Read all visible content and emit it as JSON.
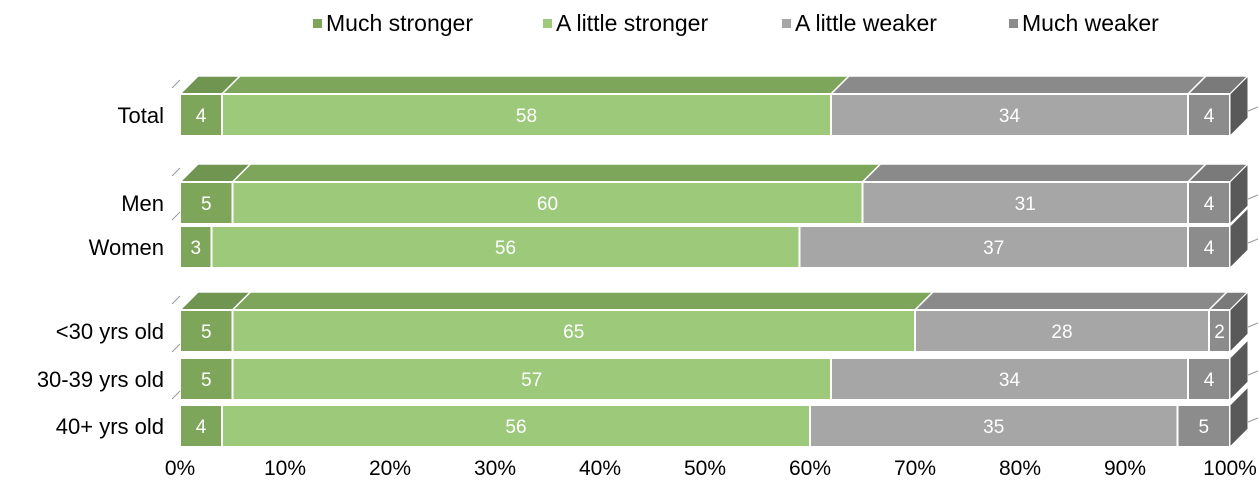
{
  "chart_data": {
    "type": "bar",
    "orientation": "horizontal",
    "stacked": true,
    "percent_stacked": true,
    "legend_position": "top",
    "xlim": [
      0,
      100
    ],
    "x_ticks": [
      "0%",
      "10%",
      "20%",
      "30%",
      "40%",
      "50%",
      "60%",
      "70%",
      "80%",
      "90%",
      "100%"
    ],
    "categories": [
      "Total",
      "Men",
      "Women",
      "<30 yrs old",
      "30-39 yrs old",
      "40+ yrs old"
    ],
    "groups": [
      [
        "Total"
      ],
      [
        "Men",
        "Women"
      ],
      [
        "<30 yrs old",
        "30-39 yrs old",
        "40+ yrs old"
      ]
    ],
    "series": [
      {
        "name": "Much stronger",
        "color": "#7ea65a",
        "values": [
          4,
          5,
          3,
          5,
          5,
          4
        ]
      },
      {
        "name": "A little stronger",
        "color": "#9dc97b",
        "values": [
          58,
          60,
          56,
          65,
          57,
          56
        ]
      },
      {
        "name": "A little weaker",
        "color": "#a6a6a6",
        "values": [
          34,
          31,
          37,
          28,
          34,
          35
        ]
      },
      {
        "name": "Much weaker",
        "color": "#8c8c8c",
        "values": [
          4,
          4,
          4,
          2,
          4,
          5
        ]
      }
    ],
    "data_labels": true
  }
}
